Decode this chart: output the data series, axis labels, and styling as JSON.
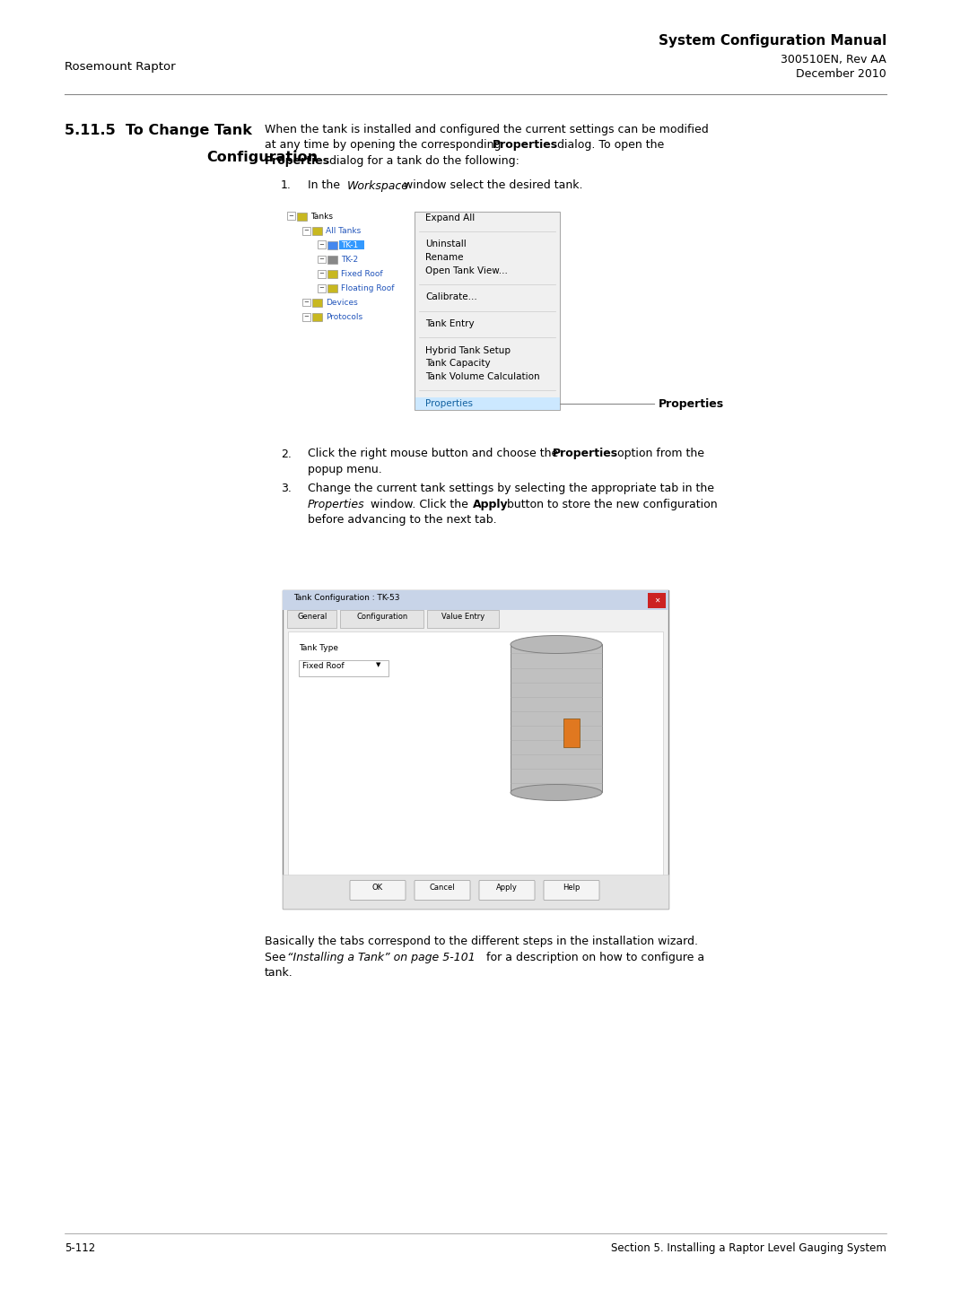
{
  "page_width": 10.8,
  "page_height": 14.37,
  "bg_color": "#ffffff",
  "header_title": "System Configuration Manual",
  "header_sub1": "300510EN, Rev AA",
  "header_sub2": "December 2010",
  "header_left": "Rosemount Raptor",
  "section_number": "5.11.5",
  "section_title_line1": "To Change Tank",
  "section_title_line2": "Configuration",
  "intro_line1": "When the tank is installed and configured the current settings can be modified",
  "intro_line2a": "at any time by opening the corresponding ",
  "intro_line2b": "Properties",
  "intro_line2c": " dialog. To open the",
  "intro_line3a": "Properties",
  "intro_line3b": " dialog for a tank do the following:",
  "step1_pre": "In the ",
  "step1_italic": "Workspace",
  "step1_post": " window select the desired tank.",
  "step2_pre": "Click the right mouse button and choose the ",
  "step2_bold": "Properties",
  "step2_post": " option from the",
  "step2_line2": "popup menu.",
  "step3_line1": "Change the current tank settings by selecting the appropriate tab in the",
  "step3_italic": "Properties",
  "step3_mid": " window. Click the ",
  "step3_bold": "Apply",
  "step3_post": " button to store the new configuration",
  "step3_line3": "before advancing to the next tab.",
  "callout_label": "Properties",
  "dialog_title": "Tank Configuration : TK-53",
  "tab1": "General",
  "tab2": "Configuration",
  "tab3": "Value Entry",
  "tank_type_label": "Tank Type",
  "tank_type_value": "Fixed Roof",
  "btn1": "OK",
  "btn2": "Cancel",
  "btn3": "Apply",
  "btn4": "Help",
  "para1": "Basically the tabs correspond to the different steps in the installation wizard.",
  "para2a": "See ",
  "para2b": "“Installing a Tank” on page 5-101",
  "para2c": " for a description on how to configure a",
  "para3": "tank.",
  "footer_left": "5-112",
  "footer_right": "Section 5. Installing a Raptor Level Gauging System",
  "separator_color": "#888888",
  "menu_bg": "#f0f0f0",
  "menu_highlight": "#cce8ff",
  "menu_border": "#aaaaaa",
  "tree_items": [
    {
      "level": 0,
      "expand": true,
      "label": "Tanks",
      "selected": false,
      "color": "#c8b820"
    },
    {
      "level": 1,
      "expand": true,
      "label": "All Tanks",
      "selected": false,
      "color": "#c8b820"
    },
    {
      "level": 2,
      "expand": true,
      "label": "TK-1",
      "selected": true,
      "color": "#4488ee"
    },
    {
      "level": 2,
      "expand": true,
      "label": "TK-2",
      "selected": false,
      "color": "#888888"
    },
    {
      "level": 2,
      "expand": true,
      "label": "Fixed Roof",
      "selected": false,
      "color": "#c8b820"
    },
    {
      "level": 2,
      "expand": true,
      "label": "Floating Roof",
      "selected": false,
      "color": "#c8b820"
    },
    {
      "level": 1,
      "expand": true,
      "label": "Devices",
      "selected": false,
      "color": "#c8b820"
    },
    {
      "level": 1,
      "expand": true,
      "label": "Protocols",
      "selected": false,
      "color": "#c8b820"
    }
  ],
  "menu_items": [
    {
      "label": "Expand All",
      "sep_before": false,
      "highlighted": false
    },
    {
      "label": "",
      "sep_before": true,
      "highlighted": false
    },
    {
      "label": "Uninstall",
      "sep_before": false,
      "highlighted": false
    },
    {
      "label": "Rename",
      "sep_before": false,
      "highlighted": false
    },
    {
      "label": "Open Tank View...",
      "sep_before": false,
      "highlighted": false
    },
    {
      "label": "",
      "sep_before": true,
      "highlighted": false
    },
    {
      "label": "Calibrate...",
      "sep_before": false,
      "highlighted": false
    },
    {
      "label": "",
      "sep_before": true,
      "highlighted": false
    },
    {
      "label": "Tank Entry",
      "sep_before": false,
      "highlighted": false
    },
    {
      "label": "",
      "sep_before": true,
      "highlighted": false
    },
    {
      "label": "Hybrid Tank Setup",
      "sep_before": false,
      "highlighted": false
    },
    {
      "label": "Tank Capacity",
      "sep_before": false,
      "highlighted": false
    },
    {
      "label": "Tank Volume Calculation",
      "sep_before": false,
      "highlighted": false
    },
    {
      "label": "",
      "sep_before": true,
      "highlighted": false
    },
    {
      "label": "Properties",
      "sep_before": false,
      "highlighted": true
    }
  ]
}
